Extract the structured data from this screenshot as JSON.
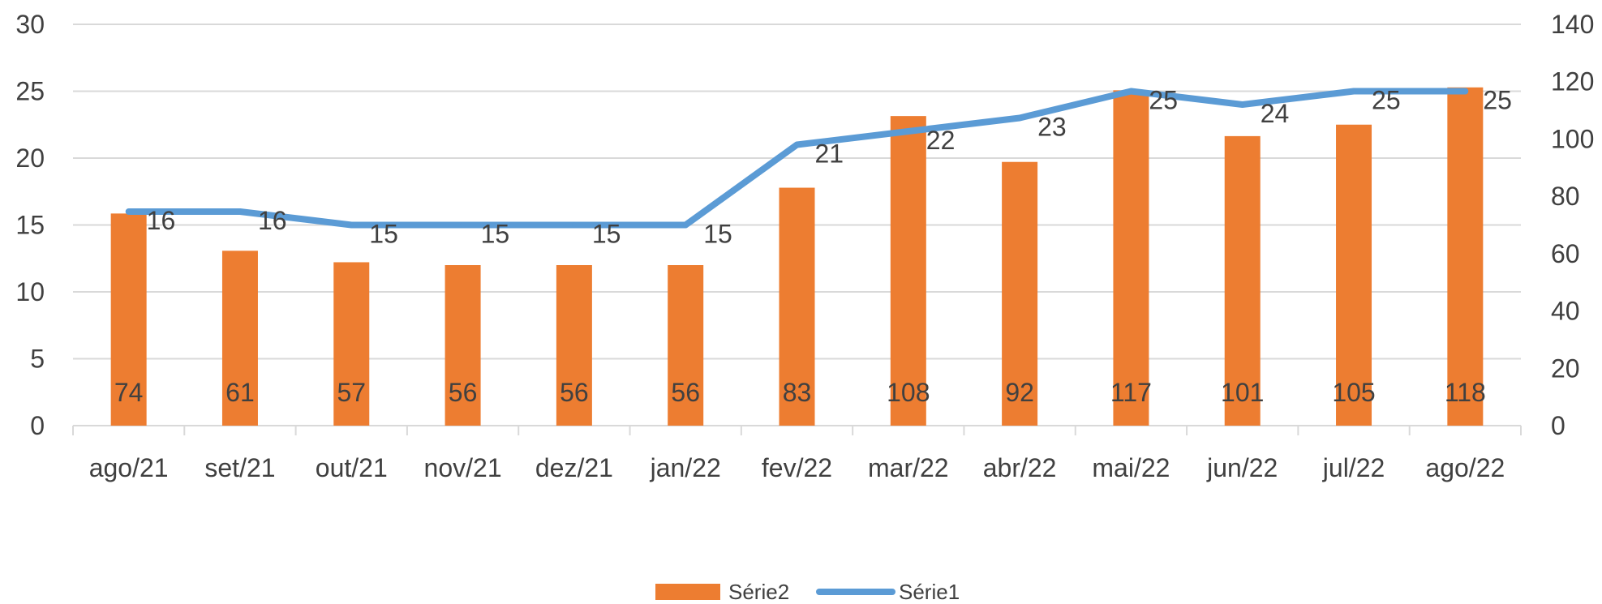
{
  "chart_data": {
    "type": "bar",
    "categories": [
      "ago/21",
      "set/21",
      "out/21",
      "nov/21",
      "dez/21",
      "jan/22",
      "fev/22",
      "mar/22",
      "abr/22",
      "mai/22",
      "jun/22",
      "jul/22",
      "ago/22"
    ],
    "series": [
      {
        "name": "Série2",
        "type": "bar",
        "axis": "right",
        "color": "#ED7D31",
        "values": [
          74,
          61,
          57,
          56,
          56,
          56,
          83,
          108,
          92,
          117,
          101,
          105,
          118
        ],
        "value_labels": [
          "74",
          "61",
          "57",
          "56",
          "56",
          "56",
          "83",
          "108",
          "92",
          "117",
          "101",
          "105",
          "118"
        ]
      },
      {
        "name": "Série1",
        "type": "line",
        "axis": "left",
        "color": "#5B9BD5",
        "values": [
          16,
          16,
          15,
          15,
          15,
          15,
          21,
          22,
          23,
          25,
          24,
          25,
          25
        ],
        "value_labels": [
          "16",
          "16",
          "15",
          "15",
          "15",
          "15",
          "21",
          "22",
          "23",
          "25",
          "24",
          "25",
          "25"
        ]
      }
    ],
    "y_left": {
      "min": 0,
      "max": 30,
      "ticks": [
        "0",
        "5",
        "10",
        "15",
        "20",
        "25",
        "30"
      ]
    },
    "y_right": {
      "min": 0,
      "max": 140,
      "ticks": [
        "0",
        "20",
        "40",
        "60",
        "80",
        "100",
        "120",
        "140"
      ]
    },
    "grid": true,
    "legend": "bottom",
    "title": "",
    "xlabel": "",
    "ylabel": ""
  }
}
